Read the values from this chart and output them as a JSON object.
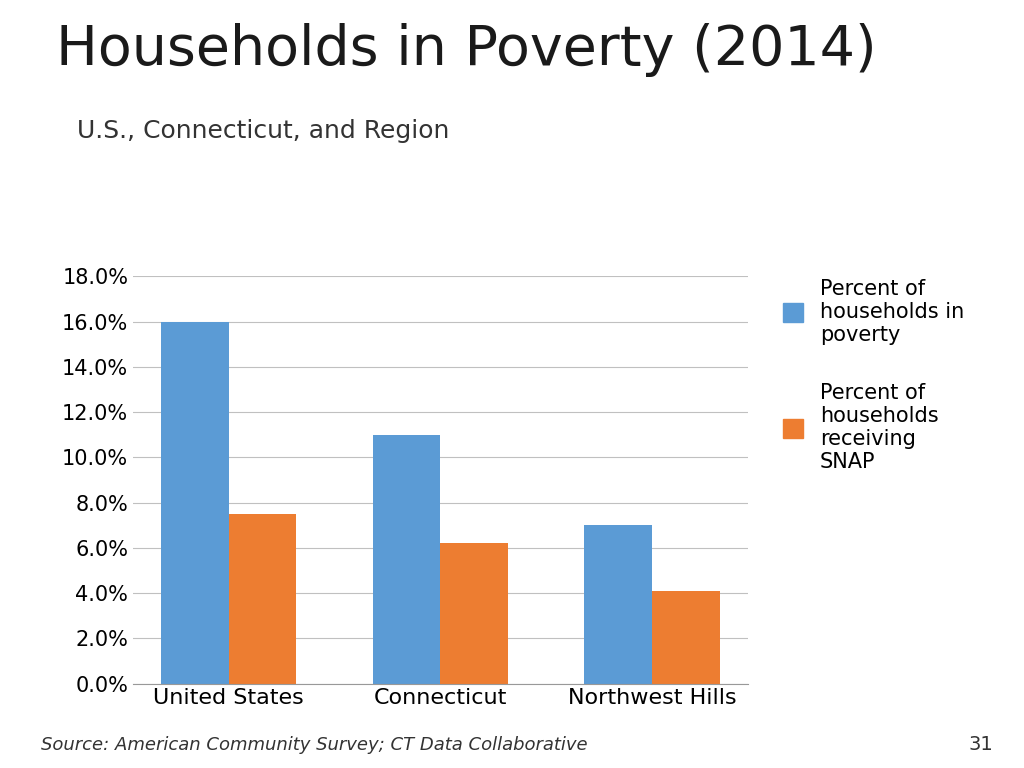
{
  "title": "Households in Poverty (2014)",
  "subtitle": "U.S., Connecticut, and Region",
  "source": "Source: American Community Survey; CT Data Collaborative",
  "page_number": "31",
  "categories": [
    "United States",
    "Connecticut",
    "Northwest Hills"
  ],
  "series": [
    {
      "label": "Percent of\nhouseholds in\npoverty",
      "values": [
        0.16,
        0.11,
        0.07
      ],
      "color": "#5B9BD5"
    },
    {
      "label": "Percent of\nhouseholds\nreceiving\nSNAP",
      "values": [
        0.075,
        0.062,
        0.041
      ],
      "color": "#ED7D31"
    }
  ],
  "ylim": [
    0,
    0.18
  ],
  "yticks": [
    0.0,
    0.02,
    0.04,
    0.06,
    0.08,
    0.1,
    0.12,
    0.14,
    0.16,
    0.18
  ],
  "bar_colors": [
    "#5B9BD5",
    "#ED7D31"
  ],
  "background_color": "#FFFFFF",
  "title_fontsize": 40,
  "subtitle_fontsize": 18,
  "tick_fontsize": 15,
  "legend_fontsize": 15,
  "source_fontsize": 13
}
